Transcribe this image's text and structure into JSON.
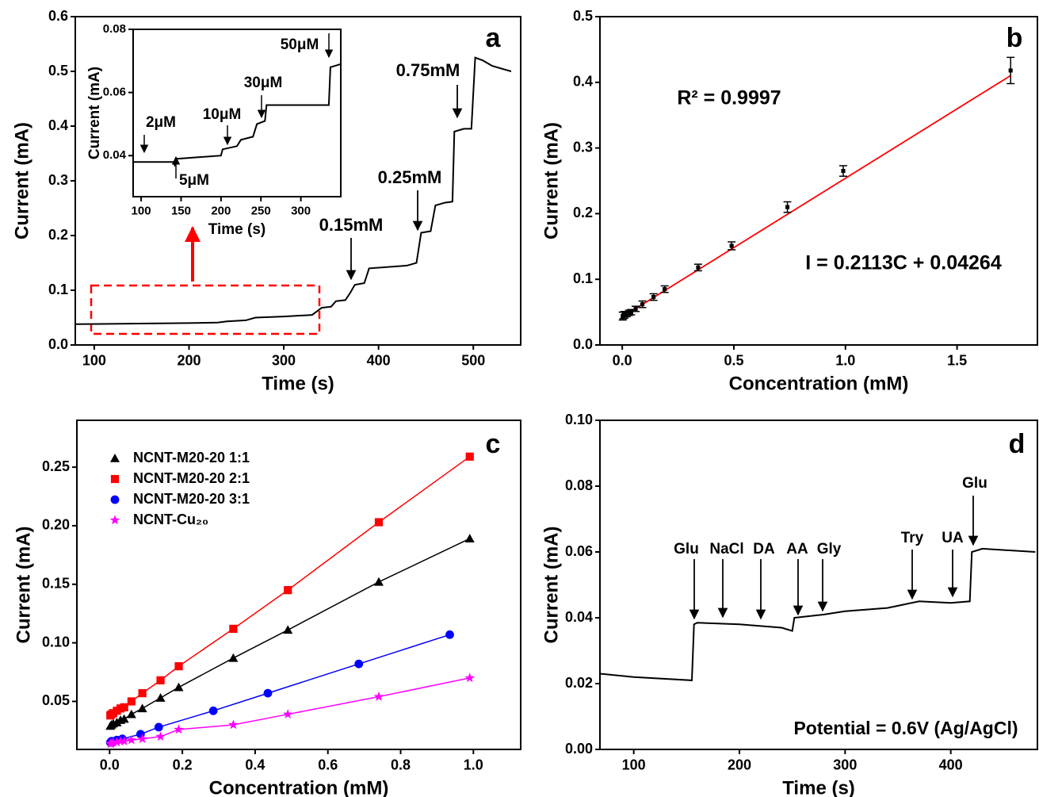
{
  "chart_data": [
    {
      "type": "line",
      "panel_label": "a",
      "xlabel": "Time (s)",
      "ylabel": "Current (mA)",
      "color": "#000000",
      "x": [
        80,
        200,
        230,
        240,
        260,
        270,
        300,
        330,
        340,
        350,
        355,
        365,
        370,
        375,
        385,
        390,
        430,
        440,
        445,
        455,
        460,
        470,
        478,
        480,
        490,
        498,
        502,
        510,
        520,
        540
      ],
      "values": [
        0.038,
        0.04,
        0.041,
        0.043,
        0.045,
        0.05,
        0.052,
        0.055,
        0.068,
        0.07,
        0.08,
        0.082,
        0.095,
        0.11,
        0.113,
        0.14,
        0.145,
        0.15,
        0.205,
        0.208,
        0.255,
        0.26,
        0.262,
        0.39,
        0.395,
        0.395,
        0.525,
        0.52,
        0.51,
        0.5
      ],
      "xlim": [
        80,
        550
      ],
      "ylim": [
        0,
        0.6
      ],
      "xticks": [
        100,
        200,
        300,
        400,
        500
      ],
      "yticks": [
        {
          "value": 0,
          "label": "0.0"
        },
        0.1,
        0.2,
        0.3,
        0.4,
        0.5,
        0.6
      ],
      "annotations": [
        "0.15mM",
        "0.25mM",
        "0.75mM"
      ],
      "inset": {
        "type": "line",
        "xlabel": "Time (s)",
        "ylabel": "Current (mA)",
        "color": "#000000",
        "x": [
          90,
          140,
          142,
          145,
          200,
          202,
          220,
          225,
          240,
          245,
          255,
          257,
          335,
          337,
          350
        ],
        "values": [
          0.038,
          0.038,
          0.037,
          0.039,
          0.04,
          0.042,
          0.043,
          0.045,
          0.046,
          0.05,
          0.051,
          0.056,
          0.056,
          0.068,
          0.069
        ],
        "xlim": [
          90,
          350
        ],
        "ylim": [
          0.027,
          0.08
        ],
        "xticks": [
          100,
          150,
          200,
          250,
          300
        ],
        "yticks": [
          0.04,
          0.06,
          0.08
        ],
        "annotations": [
          "2μM",
          "5μM",
          "10μM",
          "30μM",
          "50μM"
        ]
      }
    },
    {
      "type": "scatter",
      "panel_label": "b",
      "xlabel": "Concentration (mM)",
      "ylabel": "Current (mA)",
      "color": "#000000",
      "fit_color": "#ff0000",
      "x": [
        0.002,
        0.005,
        0.01,
        0.02,
        0.03,
        0.04,
        0.06,
        0.09,
        0.14,
        0.19,
        0.34,
        0.49,
        0.74,
        0.99,
        1.74
      ],
      "values": [
        0.044,
        0.045,
        0.046,
        0.047,
        0.049,
        0.05,
        0.055,
        0.062,
        0.073,
        0.085,
        0.118,
        0.151,
        0.21,
        0.265,
        0.418
      ],
      "errors": [
        0.006,
        0.005,
        0.005,
        0.004,
        0.004,
        0.004,
        0.004,
        0.005,
        0.005,
        0.005,
        0.005,
        0.006,
        0.008,
        0.008,
        0.02
      ],
      "fit": {
        "slope": 0.2113,
        "intercept": 0.04264
      },
      "xlim": [
        -0.1,
        1.86
      ],
      "ylim": [
        0,
        0.5
      ],
      "xticks": [
        {
          "value": 0,
          "label": "0.0"
        },
        0.5,
        {
          "value": 1,
          "label": "1.0"
        },
        1.5
      ],
      "yticks": [
        {
          "value": 0,
          "label": "0.0"
        },
        0.1,
        0.2,
        0.3,
        0.4,
        0.5
      ],
      "annotations": [
        "R² = 0.9997",
        "I = 0.2113C + 0.04264"
      ]
    },
    {
      "type": "scatter",
      "panel_label": "c",
      "xlabel": "Concentration (mM)",
      "ylabel": "Current (mA)",
      "xlim": [
        -0.09,
        1.13
      ],
      "ylim": [
        0.009,
        0.29
      ],
      "xticks": [
        {
          "value": 0,
          "label": "0.0"
        },
        0.2,
        0.4,
        0.6,
        0.8,
        {
          "value": 1,
          "label": "1.0"
        }
      ],
      "yticks": [
        0.05,
        {
          "value": 0.1,
          "label": "0.10"
        },
        0.15,
        {
          "value": 0.2,
          "label": "0.20"
        },
        0.25
      ],
      "legend": "upper left",
      "series": [
        {
          "name": "NCNT-M20-20 1:1",
          "color": "#000000",
          "marker": "triangle",
          "x": [
            0.002,
            0.005,
            0.01,
            0.02,
            0.03,
            0.04,
            0.06,
            0.09,
            0.14,
            0.19,
            0.34,
            0.49,
            0.74,
            0.99
          ],
          "values": [
            0.029,
            0.03,
            0.031,
            0.032,
            0.034,
            0.035,
            0.039,
            0.044,
            0.053,
            0.062,
            0.087,
            0.111,
            0.152,
            0.189
          ]
        },
        {
          "name": "NCNT-M20-20 2:1",
          "color": "#ff0000",
          "marker": "square",
          "x": [
            0.002,
            0.005,
            0.01,
            0.02,
            0.03,
            0.04,
            0.06,
            0.09,
            0.14,
            0.19,
            0.34,
            0.49,
            0.74,
            0.99
          ],
          "values": [
            0.038,
            0.039,
            0.04,
            0.042,
            0.044,
            0.045,
            0.05,
            0.057,
            0.068,
            0.08,
            0.112,
            0.145,
            0.203,
            0.259
          ]
        },
        {
          "name": "NCNT-M20-20 3:1",
          "color": "#0000ff",
          "marker": "circle",
          "x": [
            0.002,
            0.005,
            0.01,
            0.02,
            0.035,
            0.085,
            0.135,
            0.285,
            0.435,
            0.685,
            0.935
          ],
          "values": [
            0.015,
            0.016,
            0.016,
            0.017,
            0.018,
            0.022,
            0.028,
            0.042,
            0.057,
            0.082,
            0.107
          ]
        },
        {
          "name": "NCNT-Cu₂₀",
          "color": "#ff00ff",
          "marker": "star",
          "x": [
            0.002,
            0.005,
            0.01,
            0.02,
            0.03,
            0.04,
            0.06,
            0.09,
            0.14,
            0.19,
            0.34,
            0.49,
            0.74,
            0.99
          ],
          "values": [
            0.014,
            0.014,
            0.015,
            0.015,
            0.016,
            0.016,
            0.017,
            0.018,
            0.02,
            0.026,
            0.03,
            0.039,
            0.054,
            0.07
          ]
        }
      ]
    },
    {
      "type": "line",
      "panel_label": "d",
      "xlabel": "Time (s)",
      "ylabel": "Current (mA)",
      "color": "#000000",
      "x": [
        68,
        100,
        155,
        157,
        160,
        200,
        240,
        250,
        252,
        280,
        300,
        340,
        370,
        400,
        418,
        420,
        430,
        480
      ],
      "values": [
        0.023,
        0.022,
        0.021,
        0.038,
        0.0385,
        0.038,
        0.037,
        0.036,
        0.04,
        0.041,
        0.042,
        0.043,
        0.045,
        0.0445,
        0.045,
        0.06,
        0.061,
        0.06
      ],
      "xlim": [
        68,
        482
      ],
      "ylim": [
        0,
        0.1
      ],
      "xticks": [
        100,
        200,
        300,
        400
      ],
      "yticks": [
        {
          "value": 0,
          "label": "0.00"
        },
        0.02,
        0.04,
        0.06,
        0.08,
        {
          "value": 0.1,
          "label": "0.10"
        }
      ],
      "annotations": [
        "Glu",
        "NaCl",
        "DA",
        "AA",
        "Gly",
        "Try",
        "UA",
        "Glu",
        "Potential = 0.6V (Ag/AgCl)"
      ]
    }
  ]
}
